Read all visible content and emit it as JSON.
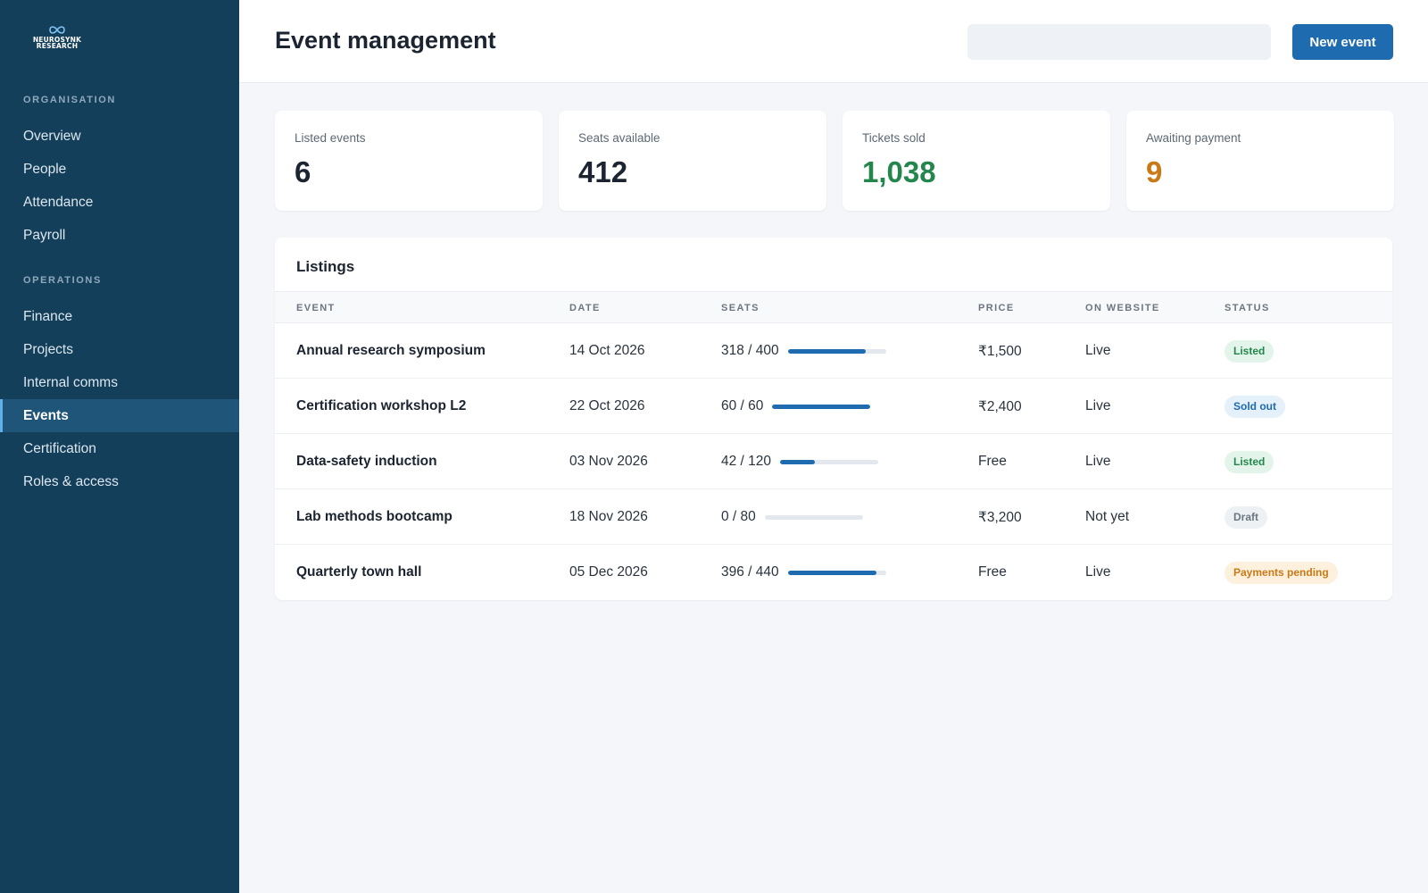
{
  "brand": {
    "line1": "NEUROSYNK",
    "line2": "RESEARCH"
  },
  "sidebar": {
    "sections": [
      {
        "title": "ORGANISATION",
        "items": [
          "Overview",
          "People",
          "Attendance",
          "Payroll"
        ]
      },
      {
        "title": "OPERATIONS",
        "items": [
          "Finance",
          "Projects",
          "Internal comms",
          "Events",
          "Certification",
          "Roles & access"
        ]
      }
    ],
    "active": "Events"
  },
  "header": {
    "title": "Event management",
    "search_value": "",
    "new_button": "New event"
  },
  "stats": [
    {
      "label": "Listed events",
      "value": "6",
      "color": "#1b2430"
    },
    {
      "label": "Seats available",
      "value": "412",
      "color": "#1b2430"
    },
    {
      "label": "Tickets sold",
      "value": "1,038",
      "color": "#23874d"
    },
    {
      "label": "Awaiting payment",
      "value": "9",
      "color": "#c97a17"
    }
  ],
  "listings": {
    "title": "Listings",
    "columns": [
      "EVENT",
      "DATE",
      "SEATS",
      "PRICE",
      "ON WEBSITE",
      "STATUS"
    ],
    "rows": [
      {
        "event": "Annual research symposium",
        "date": "14 Oct 2026",
        "seats": "318 / 400",
        "fill": 0.795,
        "price": "₹1,500",
        "website": "Live",
        "status": "Listed",
        "status_kind": "listed"
      },
      {
        "event": "Certification workshop L2",
        "date": "22 Oct 2026",
        "seats": "60 / 60",
        "fill": 1.0,
        "price": "₹2,400",
        "website": "Live",
        "status": "Sold out",
        "status_kind": "soldout"
      },
      {
        "event": "Data-safety induction",
        "date": "03 Nov 2026",
        "seats": "42 / 120",
        "fill": 0.35,
        "price": "Free",
        "website": "Live",
        "status": "Listed",
        "status_kind": "listed"
      },
      {
        "event": "Lab methods bootcamp",
        "date": "18 Nov 2026",
        "seats": "0 / 80",
        "fill": 0.0,
        "price": "₹3,200",
        "website": "Not yet",
        "status": "Draft",
        "status_kind": "draft"
      },
      {
        "event": "Quarterly town hall",
        "date": "05 Dec 2026",
        "seats": "396 / 440",
        "fill": 0.9,
        "price": "Free",
        "website": "Live",
        "status": "Payments pending",
        "status_kind": "pending"
      }
    ]
  },
  "colors": {
    "sidebar": "#143f5a",
    "accent": "#1f6bb0",
    "success": "#23874d",
    "warning": "#c97a17"
  }
}
